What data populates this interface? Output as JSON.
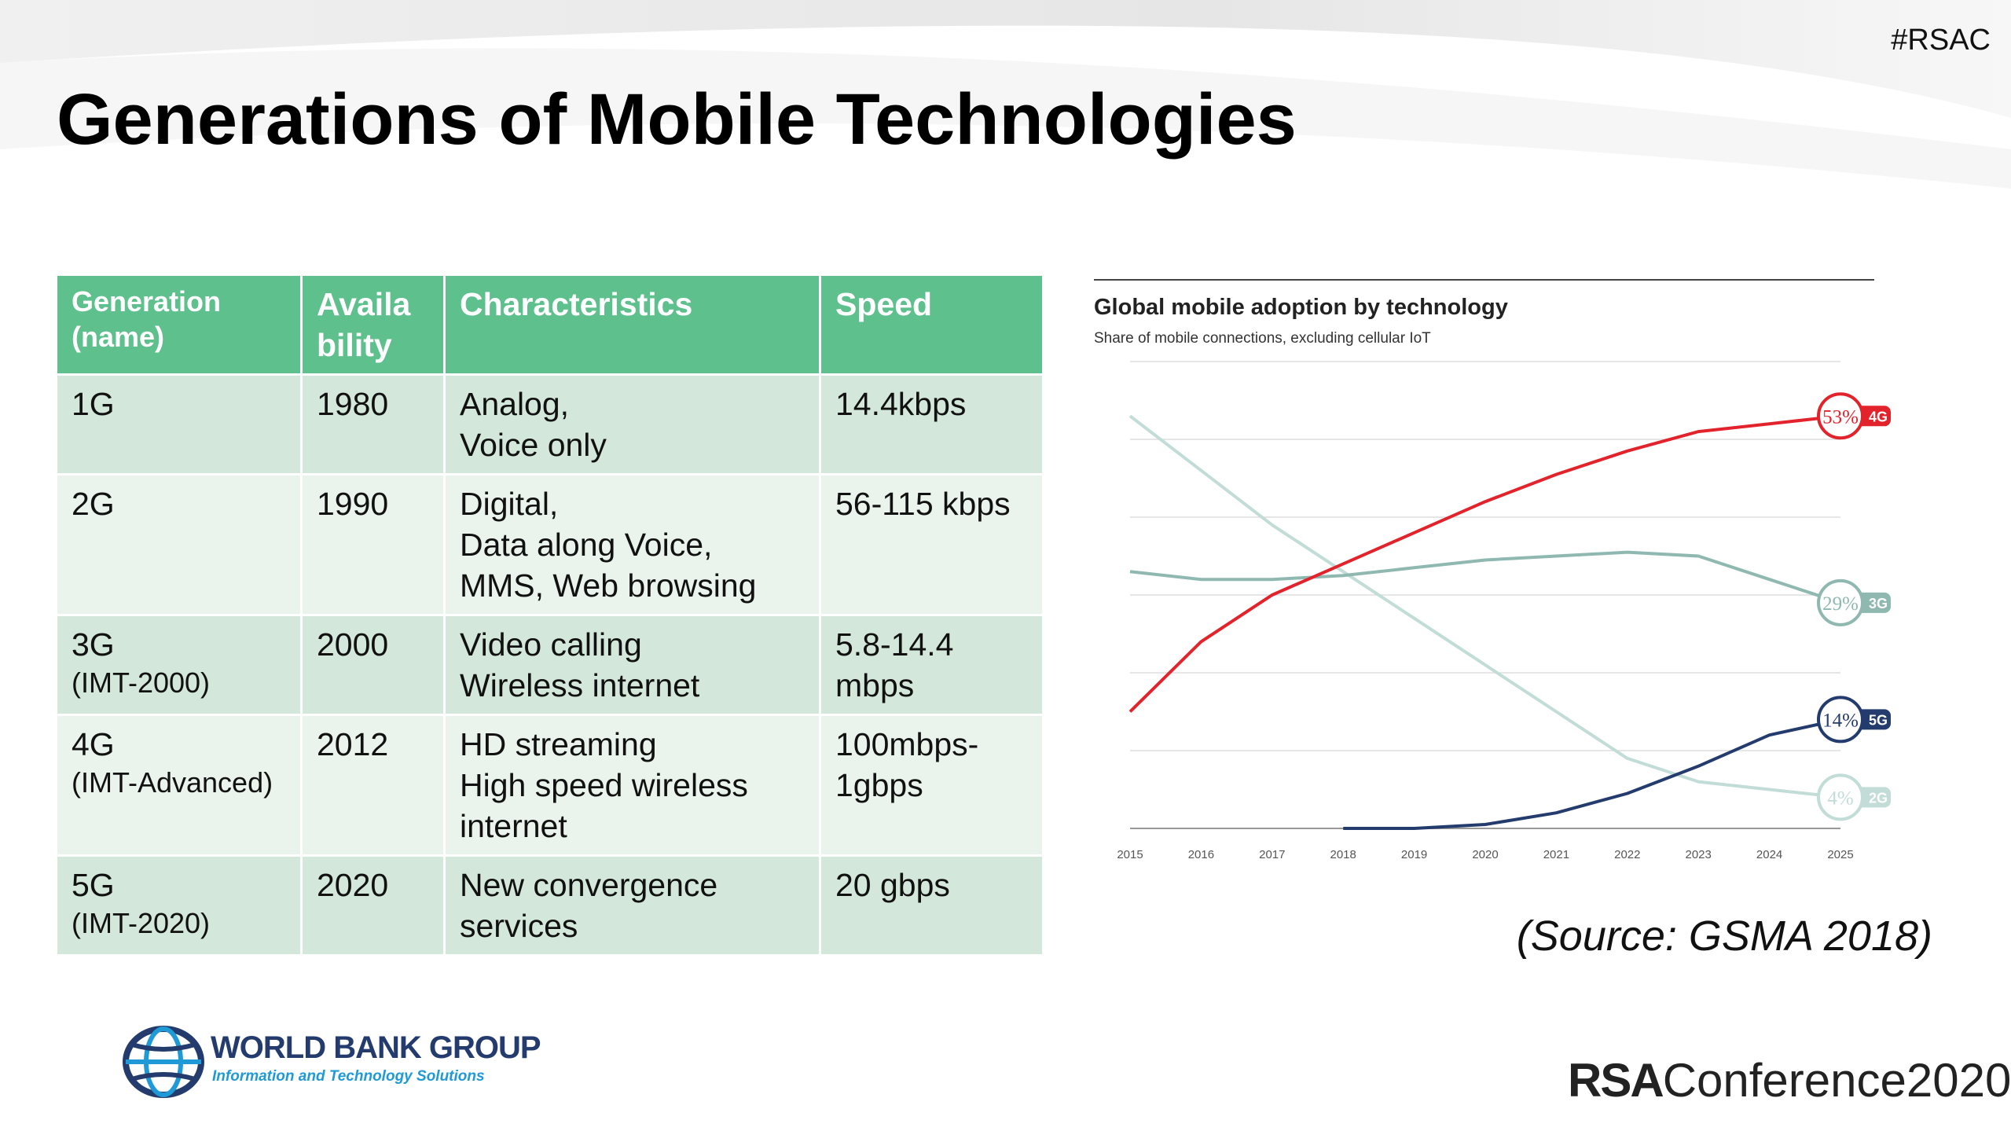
{
  "slide": {
    "hashtag": "#RSAC",
    "title": "Generations of Mobile Technologies",
    "source": "(Source: GSMA 2018)"
  },
  "table": {
    "headers": [
      "Generation (name)",
      "Availa bility",
      "Characteristics",
      "Speed"
    ],
    "rows": [
      {
        "gen": "1G",
        "sub": "",
        "year": "1980",
        "char": [
          "Analog,",
          "Voice only"
        ],
        "speed": "14.4kbps"
      },
      {
        "gen": "2G",
        "sub": "",
        "year": "1990",
        "char": [
          "Digital,",
          "Data along Voice,",
          "MMS, Web browsing"
        ],
        "speed": "56-115 kbps"
      },
      {
        "gen": "3G",
        "sub": "(IMT-2000)",
        "year": "2000",
        "char": [
          "Video calling",
          "Wireless internet"
        ],
        "speed": "5.8-14.4 mbps"
      },
      {
        "gen": "4G",
        "sub": "(IMT-Advanced)",
        "year": "2012",
        "char": [
          "HD streaming",
          "High speed wireless internet"
        ],
        "speed": "100mbps-1gbps"
      },
      {
        "gen": "5G",
        "sub": "(IMT-2020)",
        "year": "2020",
        "char": [
          "New convergence services"
        ],
        "speed": "20 gbps"
      }
    ]
  },
  "chart_data": {
    "type": "line",
    "title": "Global mobile adoption by technology",
    "subtitle": "Share of mobile connections, excluding cellular IoT",
    "x": [
      "2015",
      "2016",
      "2017",
      "2018",
      "2019",
      "2020",
      "2021",
      "2022",
      "2023",
      "2024",
      "2025"
    ],
    "ylim": [
      0,
      60
    ],
    "grid": true,
    "series": [
      {
        "name": "4G",
        "label": "53%",
        "color": "#e3232c",
        "values": [
          15,
          24,
          30,
          34,
          38,
          42,
          45.5,
          48.5,
          51,
          52,
          53
        ]
      },
      {
        "name": "3G",
        "label": "29%",
        "color": "#8fb8b1",
        "values": [
          33,
          32,
          32,
          32.5,
          33.5,
          34.5,
          35,
          35.5,
          35,
          32,
          29
        ]
      },
      {
        "name": "5G",
        "label": "14%",
        "color": "#243b6e",
        "values": [
          null,
          null,
          null,
          0,
          0,
          0.5,
          2,
          4.5,
          8,
          12,
          14
        ]
      },
      {
        "name": "2G",
        "label": "4%",
        "color": "#c2dcd8",
        "values": [
          53,
          46,
          39,
          33,
          27,
          21,
          15,
          9,
          6,
          5,
          4
        ]
      }
    ]
  },
  "logos": {
    "wbg_name": "WORLD BANK GROUP",
    "wbg_sub": "Information and Technology Solutions",
    "rsa_bold": "RSA",
    "rsa_rest": "Conference2020"
  },
  "colors": {
    "header_green": "#5ec08c",
    "row_dark": "#d3e8da",
    "row_light": "#eaf4ec"
  }
}
